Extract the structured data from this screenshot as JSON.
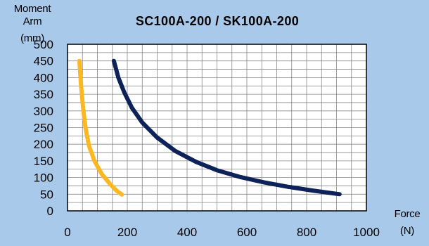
{
  "chart_data": {
    "type": "line",
    "title": "SC100A-200 / SK100A-200",
    "ylabel": [
      "Moment Arm",
      "(mm)"
    ],
    "xlabel": [
      "Force",
      "(N)"
    ],
    "xlim": [
      0,
      1000
    ],
    "ylim": [
      0,
      500
    ],
    "x_ticks": [
      0,
      200,
      400,
      600,
      800,
      1000
    ],
    "y_ticks": [
      0,
      50,
      100,
      150,
      200,
      250,
      300,
      350,
      400,
      450,
      500
    ],
    "grid": true,
    "series": [
      {
        "color": "#fcb823",
        "points": [
          [
            40,
            450
          ],
          [
            45,
            380
          ],
          [
            52,
            310
          ],
          [
            60,
            250
          ],
          [
            72,
            195
          ],
          [
            90,
            150
          ],
          [
            115,
            110
          ],
          [
            145,
            78
          ],
          [
            165,
            60
          ],
          [
            182,
            49
          ]
        ]
      },
      {
        "color": "#0c2258",
        "points": [
          [
            155,
            450
          ],
          [
            170,
            400
          ],
          [
            190,
            355
          ],
          [
            215,
            310
          ],
          [
            250,
            265
          ],
          [
            300,
            220
          ],
          [
            360,
            180
          ],
          [
            430,
            147
          ],
          [
            500,
            122
          ],
          [
            580,
            101
          ],
          [
            660,
            85
          ],
          [
            740,
            72
          ],
          [
            820,
            61
          ],
          [
            910,
            50
          ]
        ]
      }
    ]
  }
}
